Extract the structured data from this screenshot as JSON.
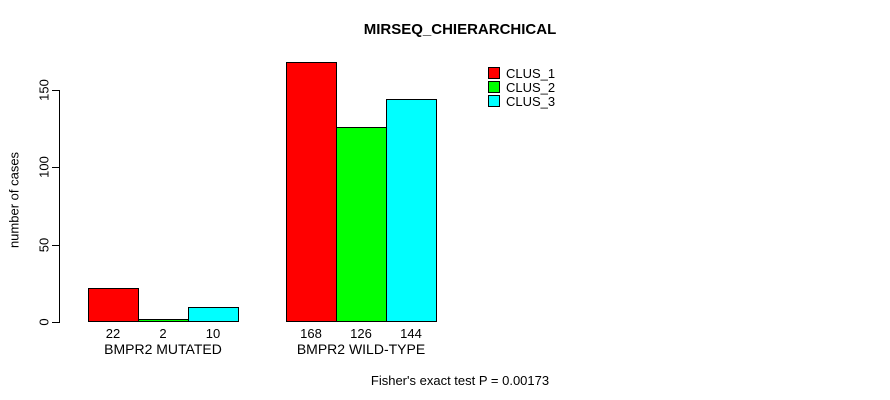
{
  "chart_data": {
    "type": "bar",
    "title": "MIRSEQ_CHIERARCHICAL",
    "ylabel": "number of cases",
    "xlabel": "",
    "categories": [
      "BMPR2 MUTATED",
      "BMPR2 WILD-TYPE"
    ],
    "series": [
      {
        "name": "CLUS_1",
        "color": "#FF0000",
        "values": [
          22,
          168
        ]
      },
      {
        "name": "CLUS_2",
        "color": "#00FF00",
        "values": [
          2,
          126
        ]
      },
      {
        "name": "CLUS_3",
        "color": "#00FFFF",
        "values": [
          10,
          144
        ]
      }
    ],
    "yticks": [
      0,
      50,
      100,
      150
    ],
    "ylim": [
      0,
      176
    ],
    "grid": false,
    "bar_value_labels_shown": true,
    "legend_position": "top-right-inside",
    "axis_color": "#000000",
    "background_color": "#FFFFFF",
    "annotation": "Fisher's exact test P = 0.00173"
  }
}
